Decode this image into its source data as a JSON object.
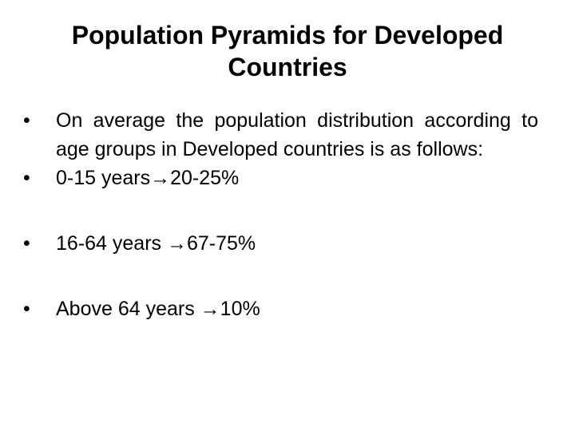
{
  "slide": {
    "title_line1": "Population Pyramids for Developed",
    "title_line2": "Countries",
    "bullet_glyph": "•",
    "bullets": [
      {
        "text": "On average the population distribution according to age groups in Developed countries is as follows:"
      },
      {
        "text": "0-15 years→20-25%"
      },
      {
        "text": "16-64 years →67-75%"
      },
      {
        "text": "Above 64 years →10%"
      }
    ]
  }
}
